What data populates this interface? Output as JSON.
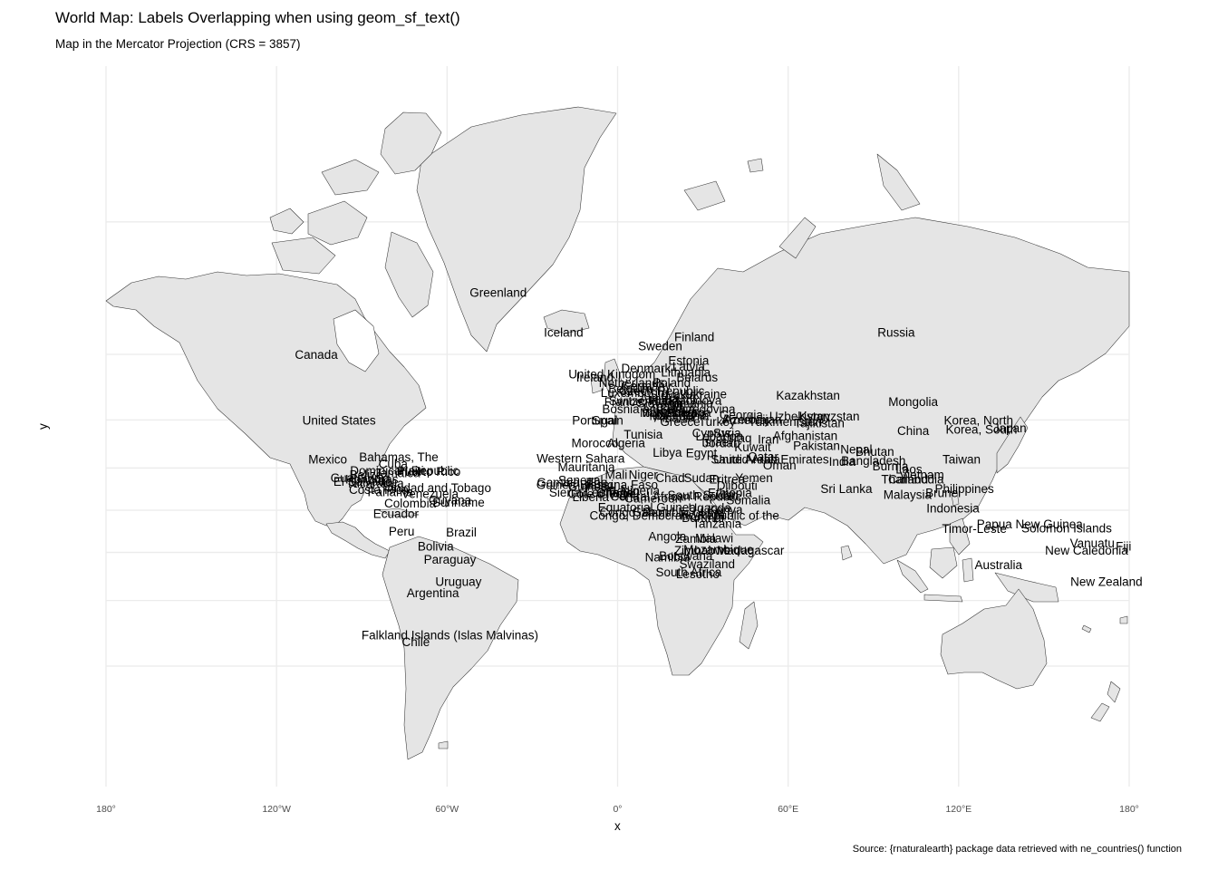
{
  "map": {
    "title": "World Map: Labels Overlapping when using geom_sf_text()",
    "subtitle": "Map in the Mercator Projection (CRS = 3857)",
    "caption": "Source: {rnaturalearth} package data retrieved with ne_countries() function",
    "xlabel": "x",
    "ylabel": "y",
    "projection": "Mercator",
    "grid": true,
    "land_color": "#e5e5e5",
    "border_color": "#333333",
    "x_ticks": [
      "180°",
      "120°W",
      "60°W",
      "0°",
      "60°E",
      "120°E",
      "180°"
    ],
    "labels": [
      {
        "name": "Greenland",
        "lon": -42,
        "lat": 72
      },
      {
        "name": "Canada",
        "lon": -106,
        "lat": 60
      },
      {
        "name": "United States",
        "lon": -98,
        "lat": 40
      },
      {
        "name": "Mexico",
        "lon": -102,
        "lat": 24
      },
      {
        "name": "Bahamas, The",
        "lon": -77,
        "lat": 25
      },
      {
        "name": "Cuba",
        "lon": -79,
        "lat": 22
      },
      {
        "name": "Dominican Republic",
        "lon": -75,
        "lat": 19
      },
      {
        "name": "Puerto Rico",
        "lon": -66.5,
        "lat": 18.5
      },
      {
        "name": "Haiti",
        "lon": -72.5,
        "lat": 19
      },
      {
        "name": "Jamaica",
        "lon": -77.5,
        "lat": 18
      },
      {
        "name": "Guatemala",
        "lon": -90.5,
        "lat": 15.5
      },
      {
        "name": "Belize",
        "lon": -88.5,
        "lat": 17
      },
      {
        "name": "Honduras",
        "lon": -86.5,
        "lat": 15
      },
      {
        "name": "El Salvador",
        "lon": -89,
        "lat": 13.8
      },
      {
        "name": "Nicaragua",
        "lon": -85,
        "lat": 13
      },
      {
        "name": "Costa Rica",
        "lon": -84,
        "lat": 10
      },
      {
        "name": "Panama",
        "lon": -80,
        "lat": 9
      },
      {
        "name": "Trinidad and Tobago",
        "lon": -64,
        "lat": 11
      },
      {
        "name": "Venezuela",
        "lon": -66,
        "lat": 8
      },
      {
        "name": "Guyana",
        "lon": -59,
        "lat": 5
      },
      {
        "name": "Suriname",
        "lon": -56,
        "lat": 4
      },
      {
        "name": "Colombia",
        "lon": -73,
        "lat": 3.5
      },
      {
        "name": "Ecuador",
        "lon": -78,
        "lat": -1.5
      },
      {
        "name": "Peru",
        "lon": -76,
        "lat": -10
      },
      {
        "name": "Brazil",
        "lon": -55,
        "lat": -10.5
      },
      {
        "name": "Bolivia",
        "lon": -64,
        "lat": -17
      },
      {
        "name": "Paraguay",
        "lon": -59,
        "lat": -23
      },
      {
        "name": "Uruguay",
        "lon": -56,
        "lat": -32.5
      },
      {
        "name": "Argentina",
        "lon": -65,
        "lat": -37
      },
      {
        "name": "Falkland Islands (Islas Malvinas)",
        "lon": -59,
        "lat": -51.5
      },
      {
        "name": "Chile",
        "lon": -71,
        "lat": -53.5
      },
      {
        "name": "Iceland",
        "lon": -19,
        "lat": 65
      },
      {
        "name": "Finland",
        "lon": 27,
        "lat": 64
      },
      {
        "name": "Sweden",
        "lon": 15,
        "lat": 62
      },
      {
        "name": "Estonia",
        "lon": 25,
        "lat": 58.5
      },
      {
        "name": "Latvia",
        "lon": 25,
        "lat": 57
      },
      {
        "name": "Denmark",
        "lon": 10,
        "lat": 56.5
      },
      {
        "name": "Lithuania",
        "lon": 24,
        "lat": 55.5
      },
      {
        "name": "United Kingdom",
        "lon": -2,
        "lat": 55
      },
      {
        "name": "Belarus",
        "lon": 28,
        "lat": 54
      },
      {
        "name": "Ireland",
        "lon": -8,
        "lat": 54
      },
      {
        "name": "Netherlands",
        "lon": 5,
        "lat": 52.5
      },
      {
        "name": "Poland",
        "lon": 19,
        "lat": 52.5
      },
      {
        "name": "Germany",
        "lon": 10,
        "lat": 51.5
      },
      {
        "name": "Belgium",
        "lon": 4.5,
        "lat": 50.7
      },
      {
        "name": "Czech Republic",
        "lon": 15.5,
        "lat": 50
      },
      {
        "name": "Ukraine",
        "lon": 31,
        "lat": 49
      },
      {
        "name": "Luxembourg",
        "lon": 6,
        "lat": 49.5
      },
      {
        "name": "Slovakia",
        "lon": 19.5,
        "lat": 48.8
      },
      {
        "name": "Moldova",
        "lon": 28.5,
        "lat": 47
      },
      {
        "name": "Austria",
        "lon": 14.5,
        "lat": 47.5
      },
      {
        "name": "Hungary",
        "lon": 19.5,
        "lat": 47
      },
      {
        "name": "Switzerland",
        "lon": 8,
        "lat": 46.8
      },
      {
        "name": "France",
        "lon": 2,
        "lat": 46.5
      },
      {
        "name": "Slovenia",
        "lon": 15,
        "lat": 46
      },
      {
        "name": "Romania",
        "lon": 25,
        "lat": 46
      },
      {
        "name": "Croatia",
        "lon": 16,
        "lat": 45
      },
      {
        "name": "Serbia",
        "lon": 21,
        "lat": 44
      },
      {
        "name": "Bosnia and Herzegovina",
        "lon": 18,
        "lat": 44
      },
      {
        "name": "Montenegro",
        "lon": 19.3,
        "lat": 42.7
      },
      {
        "name": "Kosovo",
        "lon": 21,
        "lat": 42.6
      },
      {
        "name": "Bulgaria",
        "lon": 25,
        "lat": 42.7
      },
      {
        "name": "Italy",
        "lon": 12.5,
        "lat": 42.8
      },
      {
        "name": "Macedonia",
        "lon": 21.7,
        "lat": 41.6
      },
      {
        "name": "Albania",
        "lon": 20,
        "lat": 41
      },
      {
        "name": "Georgia",
        "lon": 43.5,
        "lat": 42
      },
      {
        "name": "Armenia",
        "lon": 44.5,
        "lat": 40.2
      },
      {
        "name": "Azerbaijan",
        "lon": 47.5,
        "lat": 40.3
      },
      {
        "name": "Uzbekistan",
        "lon": 64,
        "lat": 41.5
      },
      {
        "name": "Kyrgyzstan",
        "lon": 74.5,
        "lat": 41.5
      },
      {
        "name": "Turkmenistan",
        "lon": 59,
        "lat": 39.5
      },
      {
        "name": "Tajikistan",
        "lon": 71,
        "lat": 39
      },
      {
        "name": "Spain",
        "lon": -3.5,
        "lat": 40
      },
      {
        "name": "Portugal",
        "lon": -8,
        "lat": 40
      },
      {
        "name": "Greece",
        "lon": 22,
        "lat": 39.5
      },
      {
        "name": "Turkey",
        "lon": 35,
        "lat": 39.5
      },
      {
        "name": "Russia",
        "lon": 98,
        "lat": 65
      },
      {
        "name": "Kazakhstan",
        "lon": 67,
        "lat": 48.5
      },
      {
        "name": "Mongolia",
        "lon": 104,
        "lat": 46.5
      },
      {
        "name": "China",
        "lon": 104,
        "lat": 36
      },
      {
        "name": "Korea, North",
        "lon": 127,
        "lat": 40
      },
      {
        "name": "Korea, South",
        "lon": 128,
        "lat": 36.5
      },
      {
        "name": "Japan",
        "lon": 138,
        "lat": 37
      },
      {
        "name": "Taiwan",
        "lon": 121,
        "lat": 24
      },
      {
        "name": "Cyprus",
        "lon": 33,
        "lat": 35
      },
      {
        "name": "Syria",
        "lon": 38.5,
        "lat": 35
      },
      {
        "name": "Lebanon",
        "lon": 35.8,
        "lat": 33.9
      },
      {
        "name": "Iraq",
        "lon": 43.5,
        "lat": 33
      },
      {
        "name": "Israel",
        "lon": 34.8,
        "lat": 31.5
      },
      {
        "name": "Jordan",
        "lon": 36.5,
        "lat": 31
      },
      {
        "name": "Iran",
        "lon": 53,
        "lat": 32.5
      },
      {
        "name": "Afghanistan",
        "lon": 66,
        "lat": 34
      },
      {
        "name": "Pakistan",
        "lon": 70,
        "lat": 30
      },
      {
        "name": "Kuwait",
        "lon": 47.5,
        "lat": 29.3
      },
      {
        "name": "Nepal",
        "lon": 84,
        "lat": 28.3
      },
      {
        "name": "Bhutan",
        "lon": 90.5,
        "lat": 27.5
      },
      {
        "name": "Saudi Arabia",
        "lon": 45,
        "lat": 24
      },
      {
        "name": "Qatar",
        "lon": 51.2,
        "lat": 25.3
      },
      {
        "name": "United Arab Emirates",
        "lon": 54,
        "lat": 24
      },
      {
        "name": "Bangladesh",
        "lon": 90,
        "lat": 23.5
      },
      {
        "name": "India",
        "lon": 79,
        "lat": 23
      },
      {
        "name": "Oman",
        "lon": 57,
        "lat": 21.5
      },
      {
        "name": "Burma",
        "lon": 96,
        "lat": 21
      },
      {
        "name": "Laos",
        "lon": 102.5,
        "lat": 19.5
      },
      {
        "name": "Vietnam",
        "lon": 107,
        "lat": 17
      },
      {
        "name": "Thailand",
        "lon": 101,
        "lat": 15
      },
      {
        "name": "Cambodia",
        "lon": 105,
        "lat": 15
      },
      {
        "name": "Philippines",
        "lon": 122,
        "lat": 10.5
      },
      {
        "name": "Sri Lanka",
        "lon": 80.5,
        "lat": 10.5
      },
      {
        "name": "Malaysia",
        "lon": 102,
        "lat": 7.7
      },
      {
        "name": "Brunei",
        "lon": 114.5,
        "lat": 8.5
      },
      {
        "name": "Indonesia",
        "lon": 118,
        "lat": 1
      },
      {
        "name": "Timor-Leste",
        "lon": 125.5,
        "lat": -8.8
      },
      {
        "name": "Papua New Guinea",
        "lon": 145,
        "lat": -6.5
      },
      {
        "name": "Solomon Islands",
        "lon": 158,
        "lat": -8.5
      },
      {
        "name": "Vanuatu",
        "lon": 167,
        "lat": -15.5
      },
      {
        "name": "Fiji",
        "lon": 178,
        "lat": -17
      },
      {
        "name": "New Caledonia",
        "lon": 165,
        "lat": -19
      },
      {
        "name": "Australia",
        "lon": 134,
        "lat": -25.5
      },
      {
        "name": "New Zealand",
        "lon": 172,
        "lat": -32.5
      },
      {
        "name": "Morocco",
        "lon": -8,
        "lat": 31
      },
      {
        "name": "Algeria",
        "lon": 3,
        "lat": 31
      },
      {
        "name": "Tunisia",
        "lon": 9,
        "lat": 34.5
      },
      {
        "name": "Libya",
        "lon": 17.5,
        "lat": 27
      },
      {
        "name": "Egypt",
        "lon": 29.5,
        "lat": 26.8
      },
      {
        "name": "Western Sahara",
        "lon": -13,
        "lat": 24.5
      },
      {
        "name": "Mauritania",
        "lon": -11,
        "lat": 20.5
      },
      {
        "name": "Mali",
        "lon": -0.5,
        "lat": 17
      },
      {
        "name": "Niger",
        "lon": 9,
        "lat": 17
      },
      {
        "name": "Chad",
        "lon": 18.5,
        "lat": 15.5
      },
      {
        "name": "Sudan",
        "lon": 29.5,
        "lat": 15.5
      },
      {
        "name": "Eritrea",
        "lon": 38.5,
        "lat": 15
      },
      {
        "name": "Yemen",
        "lon": 48,
        "lat": 15.5
      },
      {
        "name": "Senegal",
        "lon": -13,
        "lat": 14.5
      },
      {
        "name": "Gambia, The",
        "lon": -16,
        "lat": 13.5
      },
      {
        "name": "Guinea-Bissau",
        "lon": -14.5,
        "lat": 12.5
      },
      {
        "name": "Guinea",
        "lon": -10.5,
        "lat": 11.5
      },
      {
        "name": "Burkina Faso",
        "lon": 1.5,
        "lat": 12.5
      },
      {
        "name": "Djibouti",
        "lon": 42,
        "lat": 12
      },
      {
        "name": "Nigeria",
        "lon": 8,
        "lat": 9.5
      },
      {
        "name": "Sierra Leone",
        "lon": -11.8,
        "lat": 8.7
      },
      {
        "name": "Cote d'Ivoire",
        "lon": -5.5,
        "lat": 8
      },
      {
        "name": "Ghana",
        "lon": -1,
        "lat": 8.5
      },
      {
        "name": "Togo",
        "lon": 0.9,
        "lat": 8.6
      },
      {
        "name": "Benin",
        "lon": 2.3,
        "lat": 9.3
      },
      {
        "name": "Cameroon",
        "lon": 12.5,
        "lat": 6
      },
      {
        "name": "Central African Republic",
        "lon": 20.5,
        "lat": 6.8
      },
      {
        "name": "South Sudan",
        "lon": 30,
        "lat": 7.5
      },
      {
        "name": "Ethiopia",
        "lon": 39.5,
        "lat": 8.5
      },
      {
        "name": "Liberia",
        "lon": -9.5,
        "lat": 6.5
      },
      {
        "name": "Somalia",
        "lon": 46,
        "lat": 5
      },
      {
        "name": "Equatorial Guinea",
        "lon": 10.3,
        "lat": 1.6
      },
      {
        "name": "Uganda",
        "lon": 32.4,
        "lat": 1.4
      },
      {
        "name": "Kenya",
        "lon": 37.9,
        "lat": 0.5
      },
      {
        "name": "Gabon",
        "lon": 11.6,
        "lat": -0.6
      },
      {
        "name": "Congo, Republic of the",
        "lon": 15.5,
        "lat": -0.8
      },
      {
        "name": "Rwanda",
        "lon": 29.9,
        "lat": -1.9
      },
      {
        "name": "Burundi",
        "lon": 30,
        "lat": -3.4
      },
      {
        "name": "Congo, Democratic Republic of the",
        "lon": 23.5,
        "lat": -2.5
      },
      {
        "name": "Tanzania",
        "lon": 35,
        "lat": -6.3
      },
      {
        "name": "Angola",
        "lon": 17.5,
        "lat": -12.3
      },
      {
        "name": "Zambia",
        "lon": 27.5,
        "lat": -13.5
      },
      {
        "name": "Malawi",
        "lon": 34,
        "lat": -13.3
      },
      {
        "name": "Zimbabwe",
        "lon": 29.8,
        "lat": -19
      },
      {
        "name": "Mozambique",
        "lon": 35.5,
        "lat": -18.5
      },
      {
        "name": "Madagascar",
        "lon": 46.8,
        "lat": -18.9
      },
      {
        "name": "Namibia",
        "lon": 17.5,
        "lat": -22
      },
      {
        "name": "Botswana",
        "lon": 24,
        "lat": -21.5
      },
      {
        "name": "Swaziland",
        "lon": 31.5,
        "lat": -25
      },
      {
        "name": "South Africa",
        "lon": 25,
        "lat": -28.5
      },
      {
        "name": "Lesotho",
        "lon": 28.2,
        "lat": -29.3
      }
    ]
  }
}
